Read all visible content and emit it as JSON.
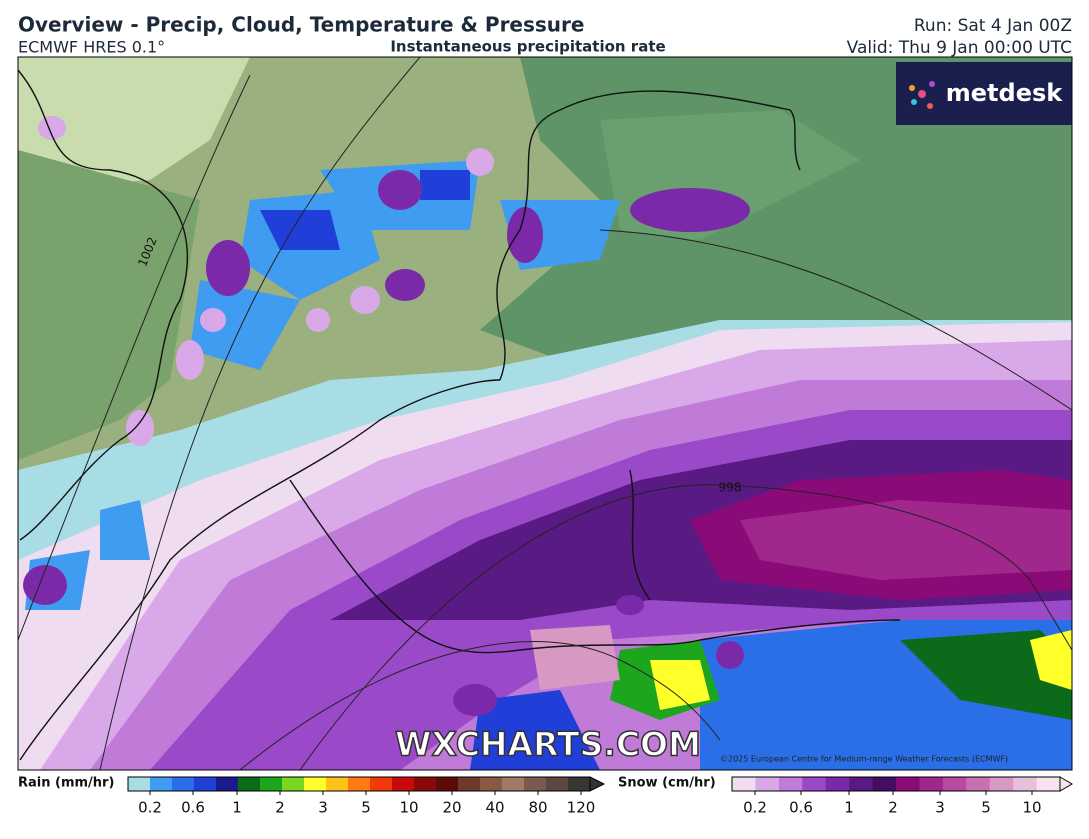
{
  "header": {
    "title": "Overview - Precip, Cloud, Temperature & Pressure",
    "model": "ECMWF HRES 0.1°",
    "subtitle": "Instantaneous precipitation rate",
    "run": "Run: Sat 4 Jan 00Z",
    "valid": "Valid: Thu 9 Jan 00:00 UTC"
  },
  "map": {
    "logo": "metdesk",
    "watermark": "WXCHARTS.COM",
    "copyright": "©2025 European Centre for Medium-range Weather Forecasts (ECMWF)",
    "isobars": [
      "1002",
      "998"
    ]
  },
  "legend": {
    "rain": {
      "label": "Rain (mm/hr)",
      "ticks": [
        0.2,
        0.6,
        1,
        2,
        3,
        5,
        10,
        20,
        40,
        80,
        120
      ],
      "colors": [
        "#a8dde6",
        "#3f9cf0",
        "#2a6fe8",
        "#1f3fd8",
        "#1a1a8c",
        "#0b6b1a",
        "#1ea51e",
        "#7ad61e",
        "#ffff2a",
        "#ffc21a",
        "#ff7a14",
        "#f03a0a",
        "#c80a0a",
        "#8a0a0a",
        "#5c0a0a",
        "#6e3a2a",
        "#8c5a44",
        "#a07a66",
        "#7a5a4e",
        "#5a4840",
        "#3a3434"
      ]
    },
    "snow": {
      "label": "Snow (cm/hr)",
      "ticks": [
        0.2,
        0.6,
        1,
        2,
        3,
        5,
        10
      ],
      "colors": [
        "#f0dcf0",
        "#d8a8e8",
        "#c07ad8",
        "#9a4ac8",
        "#7a2aa8",
        "#5a1a84",
        "#420e64",
        "#8a0a78",
        "#a0288c",
        "#b84aa0",
        "#c870b0",
        "#d898c4",
        "#e8c0dc",
        "#f6e4f0"
      ]
    }
  }
}
